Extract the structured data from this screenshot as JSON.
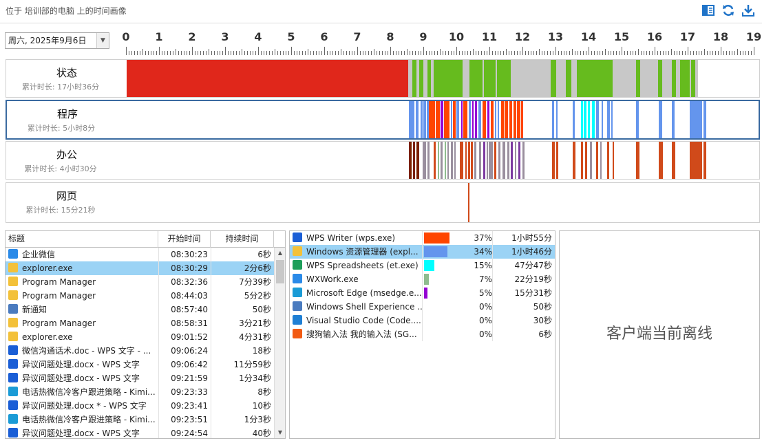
{
  "header": {
    "title": "位于 培训部的电脑 上的时间画像"
  },
  "date_select": {
    "value": "周六, 2025年9月6日"
  },
  "ruler": {
    "hours": [
      "0",
      "1",
      "2",
      "3",
      "4",
      "5",
      "6",
      "7",
      "8",
      "9",
      "10",
      "11",
      "12",
      "13",
      "14",
      "15",
      "16",
      "17",
      "18",
      "19"
    ]
  },
  "rows": [
    {
      "name": "状态",
      "summary": "累计时长: 17小时36分"
    },
    {
      "name": "程序",
      "summary": "累计时长: 5小时8分"
    },
    {
      "name": "办公",
      "summary": "累计时长: 4小时30分"
    },
    {
      "name": "网页",
      "summary": "累计时长: 15分21秒"
    }
  ],
  "left_table": {
    "headers": [
      "标题",
      "开始时间",
      "持续时间"
    ],
    "rows": [
      {
        "title": "企业微信",
        "start": "08:30:23",
        "dur": "6秒",
        "icon": "wxwork-icon"
      },
      {
        "title": "explorer.exe",
        "start": "08:30:29",
        "dur": "2分6秒",
        "icon": "folder-icon"
      },
      {
        "title": "Program Manager",
        "start": "08:32:36",
        "dur": "7分39秒",
        "icon": "folder-icon"
      },
      {
        "title": "Program Manager",
        "start": "08:44:03",
        "dur": "5分2秒",
        "icon": "folder-icon"
      },
      {
        "title": "新通知",
        "start": "08:57:40",
        "dur": "50秒",
        "icon": "window-icon"
      },
      {
        "title": "Program Manager",
        "start": "08:58:31",
        "dur": "3分21秒",
        "icon": "folder-icon"
      },
      {
        "title": "explorer.exe",
        "start": "09:01:52",
        "dur": "4分31秒",
        "icon": "folder-icon"
      },
      {
        "title": "微信沟通话术.doc - WPS 文字 - ...",
        "start": "09:06:24",
        "dur": "18秒",
        "icon": "wps-writer-icon"
      },
      {
        "title": "异议问题处理.docx - WPS 文字",
        "start": "09:06:42",
        "dur": "11分59秒",
        "icon": "wps-writer-icon"
      },
      {
        "title": "异议问题处理.docx - WPS 文字",
        "start": "09:21:59",
        "dur": "1分34秒",
        "icon": "wps-writer-icon"
      },
      {
        "title": "电话热微信冷客户跟进策略 - Kimi...",
        "start": "09:23:33",
        "dur": "8秒",
        "icon": "edge-icon"
      },
      {
        "title": "异议问题处理.docx * - WPS 文字",
        "start": "09:23:41",
        "dur": "10秒",
        "icon": "wps-writer-icon"
      },
      {
        "title": "电话热微信冷客户跟进策略 - Kimi...",
        "start": "09:23:51",
        "dur": "1分3秒",
        "icon": "edge-icon"
      },
      {
        "title": "异议问题处理.docx - WPS 文字",
        "start": "09:24:54",
        "dur": "40秒",
        "icon": "wps-writer-icon"
      }
    ]
  },
  "app_table": {
    "rows": [
      {
        "name": "WPS Writer (wps.exe)",
        "percent": "37%",
        "duration": "1小时55分",
        "share": 0.37,
        "color": "#ff4500",
        "icon": "wps-writer-icon"
      },
      {
        "name": "Windows 资源管理器 (expl...",
        "percent": "34%",
        "duration": "1小时46分",
        "share": 0.34,
        "color": "#6495ed",
        "icon": "folder-icon"
      },
      {
        "name": "WPS Spreadsheets (et.exe)",
        "percent": "15%",
        "duration": "47分47秒",
        "share": 0.15,
        "color": "#00ffff",
        "icon": "wps-sheet-icon"
      },
      {
        "name": "WXWork.exe",
        "percent": "7%",
        "duration": "22分19秒",
        "share": 0.07,
        "color": "#8fbc8f",
        "icon": "wxwork-icon"
      },
      {
        "name": "Microsoft Edge (msedge.e...",
        "percent": "5%",
        "duration": "15分31秒",
        "share": 0.05,
        "color": "#9400d3",
        "icon": "edge-icon"
      },
      {
        "name": "Windows Shell Experience ...",
        "percent": "0%",
        "duration": "50秒",
        "share": 0,
        "color": "#cccccc",
        "icon": "window-icon"
      },
      {
        "name": "Visual Studio Code (Code....",
        "percent": "0%",
        "duration": "30秒",
        "share": 0,
        "color": "#cccccc",
        "icon": "vscode-icon"
      },
      {
        "name": "搜狗输入法 我的输入法 (SG...",
        "percent": "0%",
        "duration": "6秒",
        "share": 0,
        "color": "#cccccc",
        "icon": "sogou-icon"
      }
    ]
  },
  "offline": {
    "text": "客户端当前离线"
  },
  "colors": {
    "red": "#e0271b",
    "green": "#66bb1e",
    "gray": "#c8c8c8",
    "accent": "#1f73c8"
  }
}
